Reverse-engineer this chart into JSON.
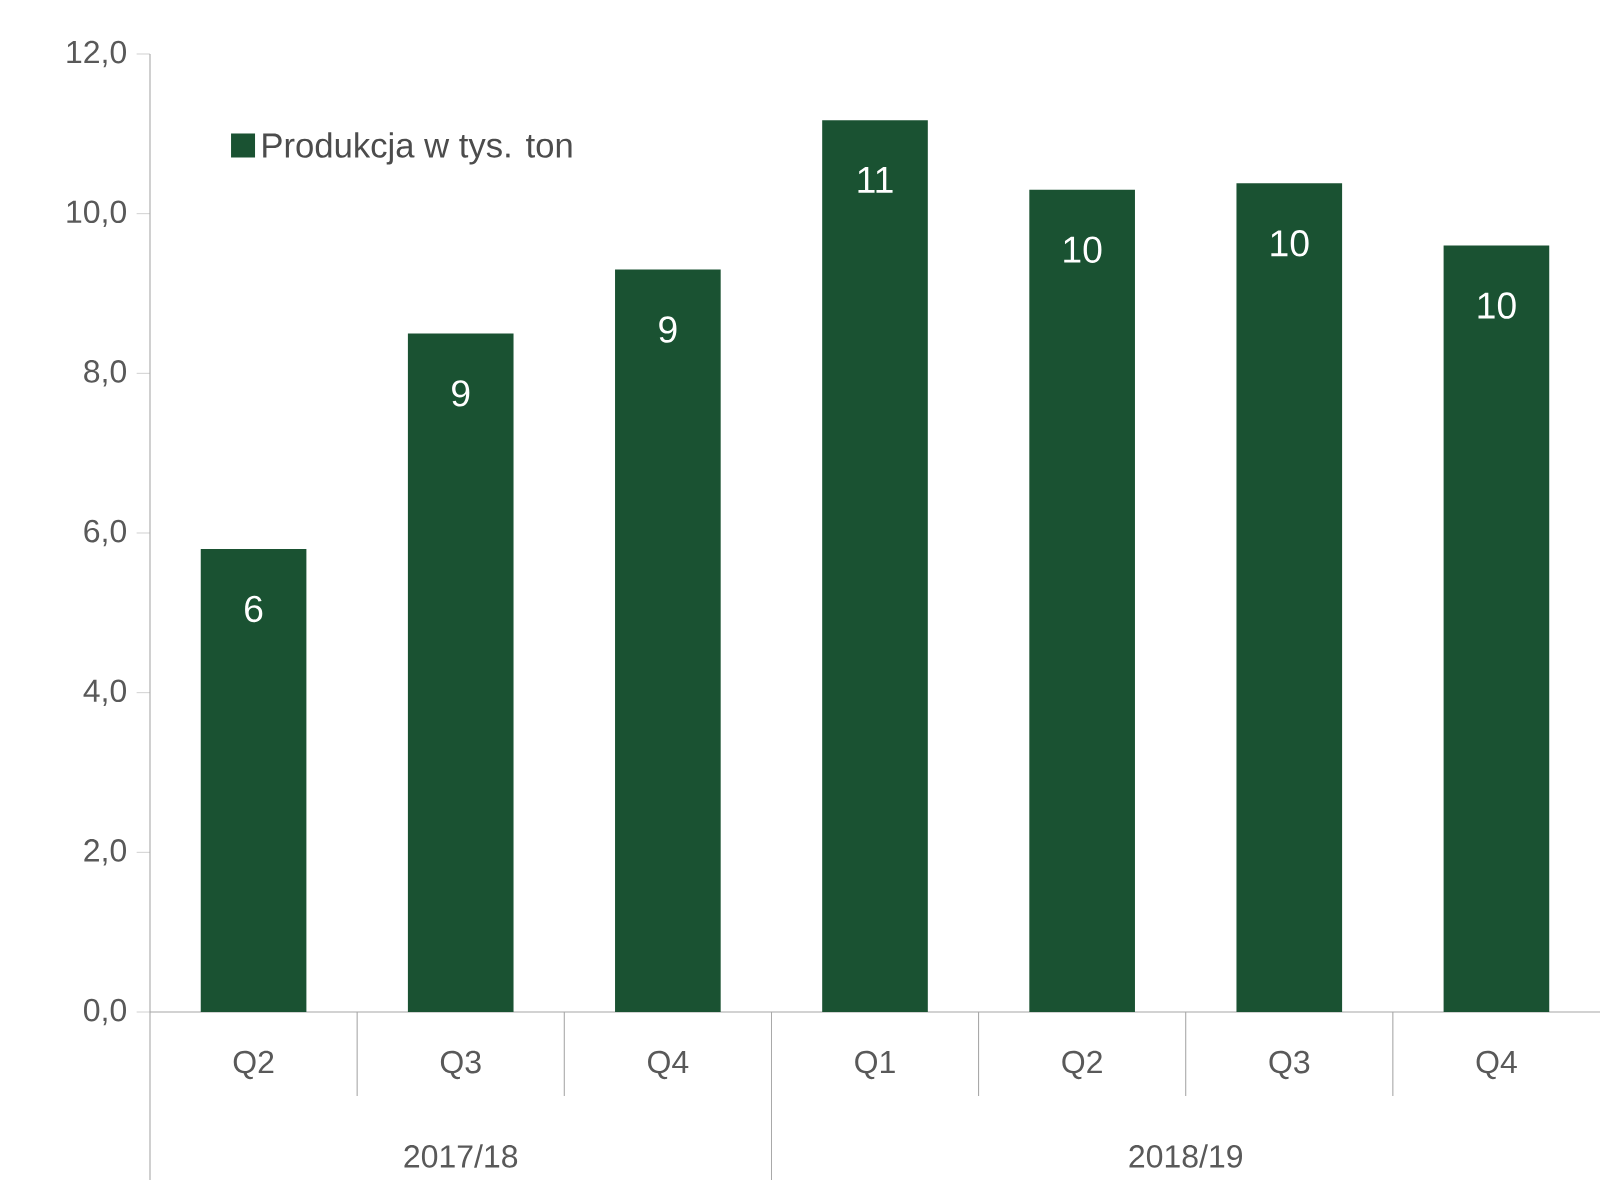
{
  "chart_data": {
    "type": "bar",
    "categories": [
      "Q2",
      "Q3",
      "Q4",
      "Q1",
      "Q2",
      "Q3",
      "Q4"
    ],
    "series": [
      {
        "name": "Produkcja w tys. ton",
        "color": "#1a5232",
        "values": [
          5.8,
          8.5,
          9.3,
          11.17,
          10.3,
          10.38,
          9.6
        ],
        "value_labels": [
          "6",
          "9",
          "9",
          "11",
          "10",
          "10",
          "10"
        ]
      }
    ],
    "ylim": [
      0,
      12
    ],
    "yticks": [
      {
        "value": 0,
        "label": "0,0"
      },
      {
        "value": 2,
        "label": "2,0"
      },
      {
        "value": 4,
        "label": "4,0"
      },
      {
        "value": 6,
        "label": "6,0"
      },
      {
        "value": 8,
        "label": "8,0"
      },
      {
        "value": 10,
        "label": "10,0"
      },
      {
        "value": 12,
        "label": "12,0"
      }
    ],
    "annotations": [
      "2017/18",
      "2018/19"
    ],
    "legend": "top left",
    "grid": false
  }
}
